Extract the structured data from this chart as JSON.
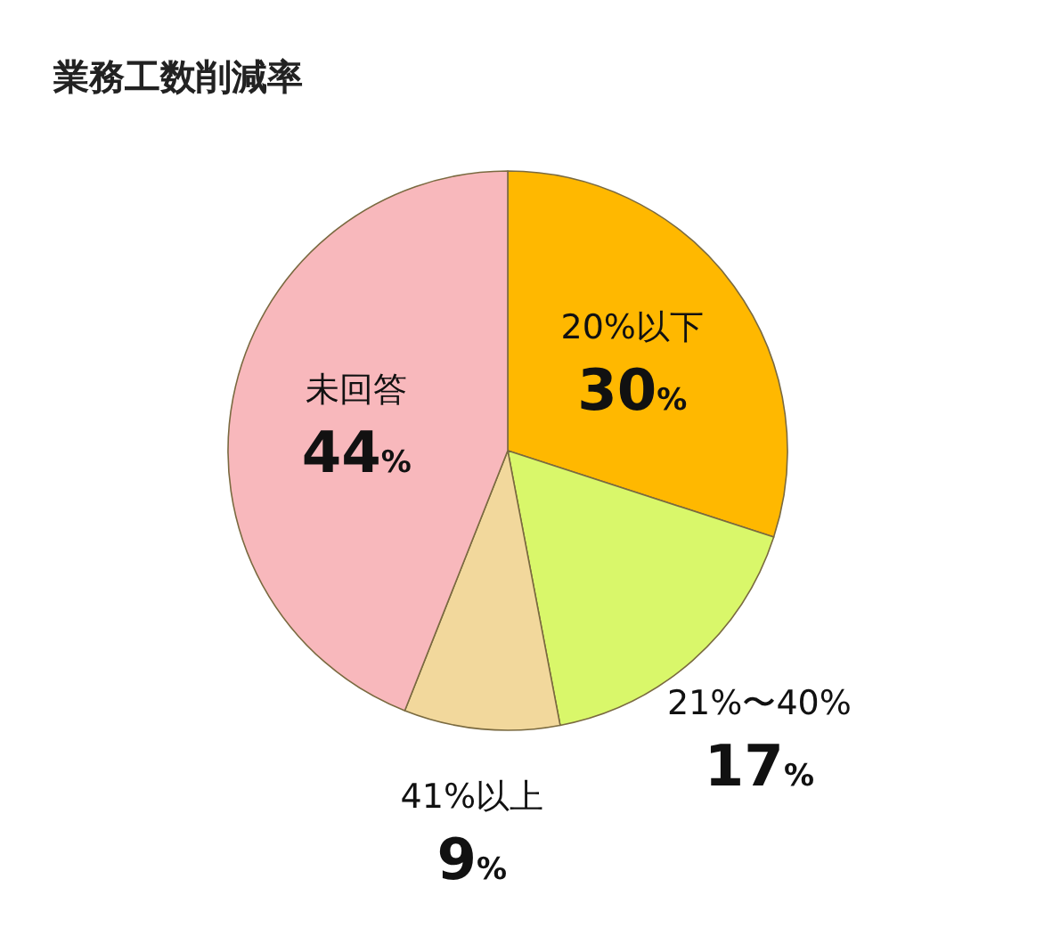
{
  "chart_data": {
    "type": "pie",
    "title": "業務工数削減率",
    "categories": [
      "20%以下",
      "21%〜40%",
      "41%以上",
      "未回答"
    ],
    "values": [
      30,
      17,
      9,
      44
    ],
    "colors": [
      "#ffb800",
      "#d9f76a",
      "#f2d89c",
      "#f8b8bc"
    ],
    "value_labels": [
      "30%",
      "17%",
      "9%",
      "44%"
    ]
  }
}
